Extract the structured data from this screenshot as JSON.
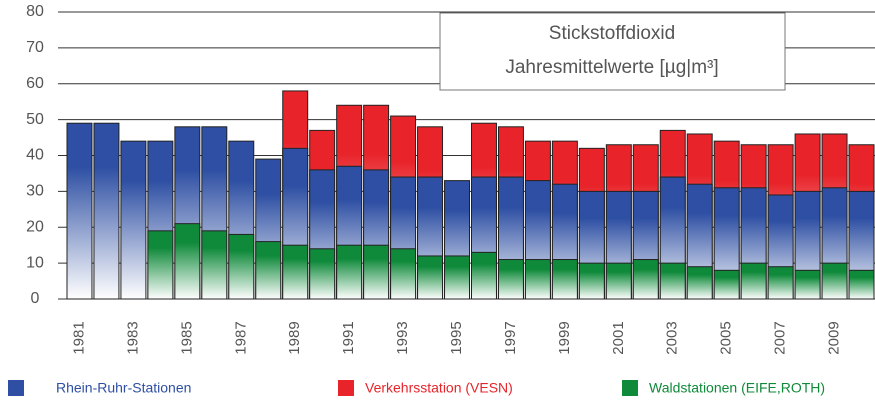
{
  "chart_data": {
    "type": "bar",
    "title": "Stickstoffdioxid",
    "subtitle": "Jahresmittelwerte [µg|m³]",
    "categories": [
      "1981",
      null,
      "1983",
      null,
      "1985",
      null,
      "1987",
      null,
      "1989",
      null,
      "1991",
      null,
      "1993",
      null,
      "1995",
      null,
      "1997",
      null,
      "1999",
      null,
      "2001",
      null,
      "2003",
      null,
      "2005",
      null,
      "2007",
      null,
      "2009",
      null
    ],
    "series": [
      {
        "name": "Verkehrsstation (VESN)",
        "color": "#e8242a",
        "values": [
          null,
          null,
          null,
          null,
          null,
          null,
          null,
          null,
          58,
          47,
          54,
          54,
          51,
          48,
          null,
          49,
          48,
          44,
          44,
          42,
          43,
          43,
          47,
          46,
          44,
          43,
          43,
          46,
          46,
          43
        ]
      },
      {
        "name": "Rhein-Ruhr-Stationen",
        "color": "#2e4fa3",
        "values": [
          49,
          49,
          44,
          44,
          48,
          48,
          44,
          39,
          42,
          36,
          37,
          36,
          34,
          34,
          33,
          34,
          34,
          33,
          32,
          30,
          30,
          30,
          34,
          32,
          31,
          31,
          29,
          30,
          31,
          30
        ]
      },
      {
        "name": "Waldstationen (EIFE,ROTH)",
        "color": "#0f8a3a",
        "values": [
          null,
          null,
          null,
          19,
          21,
          19,
          18,
          16,
          15,
          14,
          15,
          15,
          14,
          12,
          12,
          13,
          11,
          11,
          11,
          10,
          10,
          11,
          10,
          9,
          8,
          10,
          9,
          8,
          10,
          8
        ]
      }
    ],
    "ylim": [
      0,
      80
    ],
    "yticks": [
      0,
      10,
      20,
      30,
      40,
      50,
      60,
      70,
      80
    ],
    "grid": true
  }
}
